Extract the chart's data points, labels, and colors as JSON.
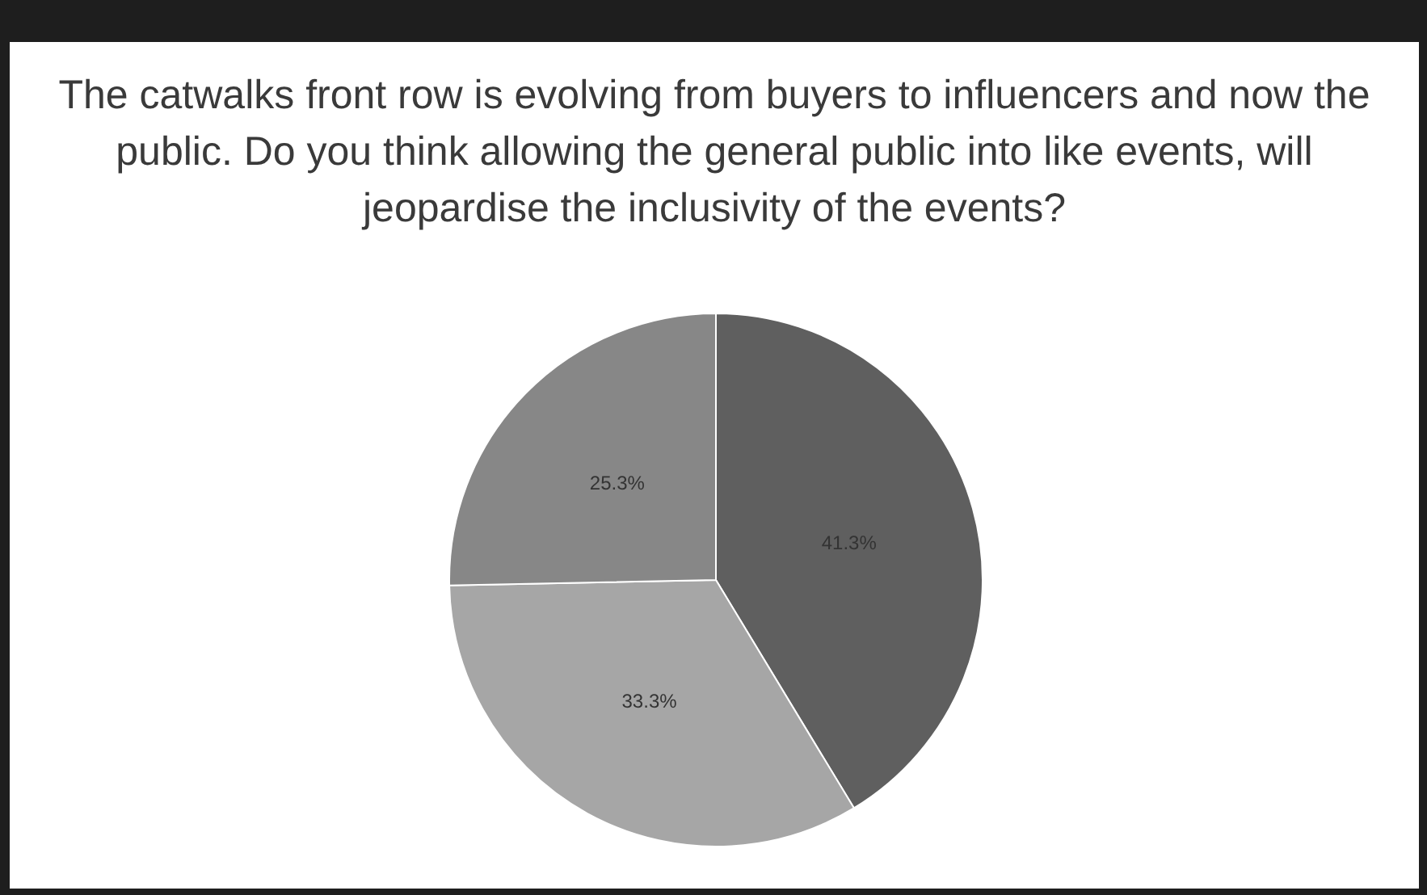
{
  "chart_data": {
    "type": "pie",
    "title": "The catwalks front row is evolving from buyers to influencers and now the public. Do you think allowing the general public into like events, will jeopardise the inclusivity of the events?",
    "categories": [
      null,
      null,
      null
    ],
    "values": [
      41.3,
      33.3,
      25.3
    ],
    "colors": [
      "#5f5f5f",
      "#a6a6a6",
      "#878787"
    ],
    "value_labels": [
      "41.3%",
      "33.3%",
      "25.3%"
    ]
  }
}
